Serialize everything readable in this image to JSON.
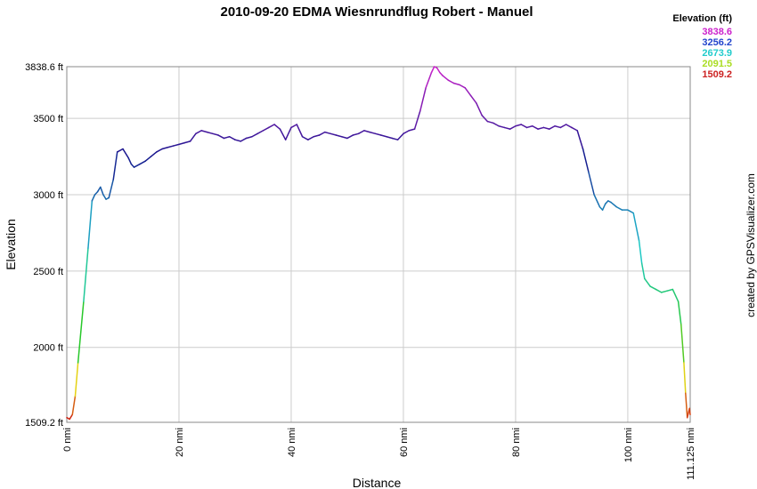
{
  "chart_data": {
    "type": "line",
    "title": "2010-09-20 EDMA Wiesnrundflug Robert - Manuel",
    "xlabel": "Distance",
    "ylabel": "Elevation",
    "xlim": [
      0,
      111.125
    ],
    "ylim": [
      1509.2,
      3838.6
    ],
    "x_ticks": [
      {
        "value": 0,
        "label": "0 nmi"
      },
      {
        "value": 20,
        "label": "20 nmi"
      },
      {
        "value": 40,
        "label": "40 nmi"
      },
      {
        "value": 60,
        "label": "60 nmi"
      },
      {
        "value": 80,
        "label": "80 nmi"
      },
      {
        "value": 100,
        "label": "100 nmi"
      },
      {
        "value": 111.125,
        "label": "111.125 nmi"
      }
    ],
    "y_ticks": [
      {
        "value": 1509.2,
        "label": "1509.2 ft"
      },
      {
        "value": 2000,
        "label": "2000 ft"
      },
      {
        "value": 2500,
        "label": "2500 ft"
      },
      {
        "value": 3000,
        "label": "3000 ft"
      },
      {
        "value": 3500,
        "label": "3500 ft"
      },
      {
        "value": 3838.6,
        "label": "3838.6 ft"
      }
    ],
    "grid": true,
    "legend": {
      "title": "Elevation (ft)",
      "placement": "top-right",
      "entries": [
        {
          "label": "3838.6",
          "color": "#cc22cc"
        },
        {
          "label": "3256.2",
          "color": "#2244cc"
        },
        {
          "label": "2673.9",
          "color": "#22cccc"
        },
        {
          "label": "2091.5",
          "color": "#aadd22"
        },
        {
          "label": "1509.2",
          "color": "#cc2222"
        }
      ]
    },
    "credit": "created by GPSVisualizer.com",
    "series": [
      {
        "x": [
          0,
          0.5,
          1,
          1.5,
          2,
          3,
          3.8,
          4.5,
          5,
          5.5,
          6,
          6.5,
          7,
          7.5,
          8.3,
          9,
          10,
          11,
          11.5,
          12,
          13,
          14,
          15,
          16,
          17,
          18,
          19,
          20,
          21,
          22,
          23,
          24,
          25,
          26,
          27,
          28,
          29,
          30,
          31,
          32,
          33,
          34,
          35,
          36,
          37,
          38,
          39,
          40,
          41,
          42,
          43,
          44,
          45,
          46,
          47,
          48,
          49,
          50,
          51,
          52,
          53,
          54,
          55,
          56,
          57,
          58,
          59,
          60,
          61,
          62,
          63,
          64,
          65,
          65.5,
          66,
          66.5,
          67,
          68,
          69,
          70,
          71,
          72,
          73,
          74,
          75,
          76,
          77,
          78,
          79,
          80,
          81,
          82,
          83,
          84,
          85,
          86,
          87,
          88,
          89,
          90,
          91,
          92,
          93,
          94,
          95,
          95.5,
          96,
          96.5,
          97,
          98,
          99,
          100,
          101,
          102,
          102.5,
          103,
          104,
          105,
          106,
          107,
          108,
          109,
          109.5,
          110,
          110.3,
          110.6,
          111,
          111.125
        ],
        "y": [
          1540,
          1530,
          1560,
          1680,
          1900,
          2300,
          2650,
          2960,
          3000,
          3020,
          3050,
          3000,
          2970,
          2980,
          3100,
          3280,
          3300,
          3240,
          3200,
          3180,
          3200,
          3220,
          3250,
          3280,
          3300,
          3310,
          3320,
          3330,
          3340,
          3350,
          3400,
          3420,
          3410,
          3400,
          3390,
          3370,
          3380,
          3360,
          3350,
          3370,
          3380,
          3400,
          3420,
          3440,
          3460,
          3430,
          3360,
          3440,
          3460,
          3380,
          3360,
          3380,
          3390,
          3410,
          3400,
          3390,
          3380,
          3370,
          3390,
          3400,
          3420,
          3410,
          3400,
          3390,
          3380,
          3370,
          3360,
          3400,
          3420,
          3430,
          3550,
          3700,
          3800,
          3838.6,
          3830,
          3800,
          3780,
          3750,
          3730,
          3720,
          3700,
          3650,
          3600,
          3520,
          3480,
          3470,
          3450,
          3440,
          3430,
          3450,
          3460,
          3440,
          3450,
          3430,
          3440,
          3430,
          3450,
          3440,
          3460,
          3440,
          3420,
          3300,
          3150,
          3000,
          2920,
          2900,
          2940,
          2960,
          2950,
          2920,
          2900,
          2900,
          2880,
          2700,
          2550,
          2450,
          2400,
          2380,
          2360,
          2370,
          2380,
          2300,
          2150,
          1900,
          1700,
          1540,
          1600,
          1560
        ]
      }
    ]
  }
}
